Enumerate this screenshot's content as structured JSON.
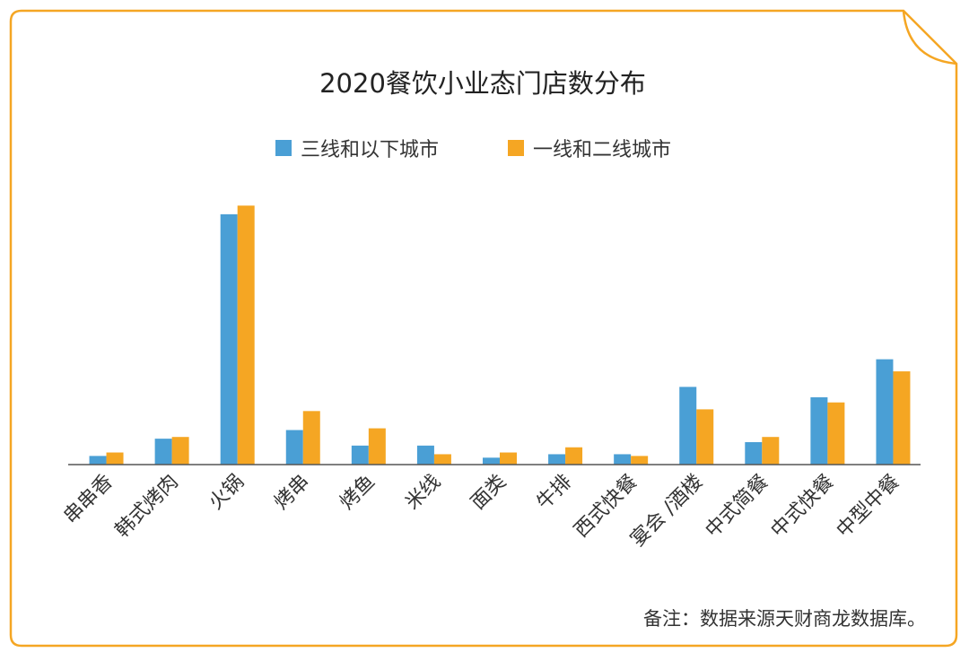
{
  "chart_data": {
    "type": "bar",
    "title": "2020餐饮小业态门店数分布",
    "categories": [
      "串串香",
      "韩式烤肉",
      "火锅",
      "烤串",
      "烤鱼",
      "米线",
      "面类",
      "牛排",
      "西式快餐",
      "宴会 /酒楼",
      "中式简餐",
      "中式快餐",
      "中型中餐"
    ],
    "series": [
      {
        "name": "三线和以下城市",
        "values": [
          5,
          15,
          145,
          20,
          11,
          11,
          4,
          6,
          6,
          45,
          13,
          39,
          61
        ]
      },
      {
        "name": "一线和二线城市",
        "values": [
          7,
          16,
          150,
          31,
          21,
          6,
          7,
          10,
          5,
          32,
          16,
          36,
          54
        ]
      }
    ],
    "ylim": [
      0,
      160
    ],
    "grid": false,
    "legend": "top-center"
  },
  "colors": {
    "series_1": "#4a9fd5",
    "series_2": "#f5a623",
    "frame": "#f5a623",
    "axis": "#555555",
    "text": "#333333"
  },
  "note": "备注：数据来源天财商龙数据库。"
}
